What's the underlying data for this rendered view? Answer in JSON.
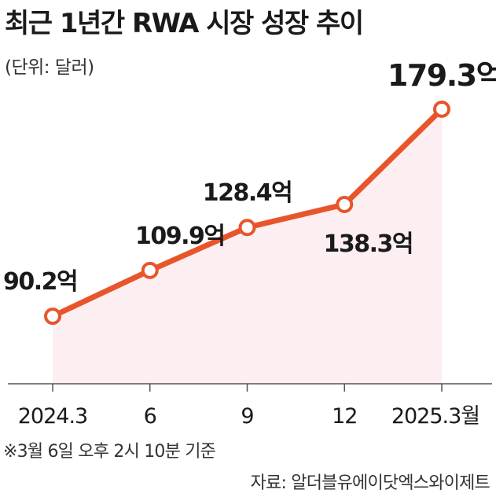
{
  "title": "최근 1년간 RWA 시장 성장 추이",
  "unit_label": "(단위: 달러)",
  "note": "※3월 6일 오후 2시 10분 기준",
  "source": "자료: 알더블유에이닷엑스와이제트",
  "colors": {
    "line": "#e8552b",
    "fill": "#fdeef1",
    "axis": "#555555",
    "marker_fill": "#ffffff"
  },
  "chart_data": {
    "type": "line",
    "categories": [
      "2024.3",
      "6",
      "9",
      "12",
      "2025.3월"
    ],
    "values": [
      90.2,
      109.9,
      128.4,
      138.3,
      179.3
    ],
    "data_labels": [
      "90.2억",
      "109.9억",
      "128.4억",
      "138.3억",
      "179.3억"
    ],
    "xlabel": "",
    "ylabel": "",
    "ylim": [
      30,
      185
    ],
    "grid": false,
    "legend": "none"
  }
}
